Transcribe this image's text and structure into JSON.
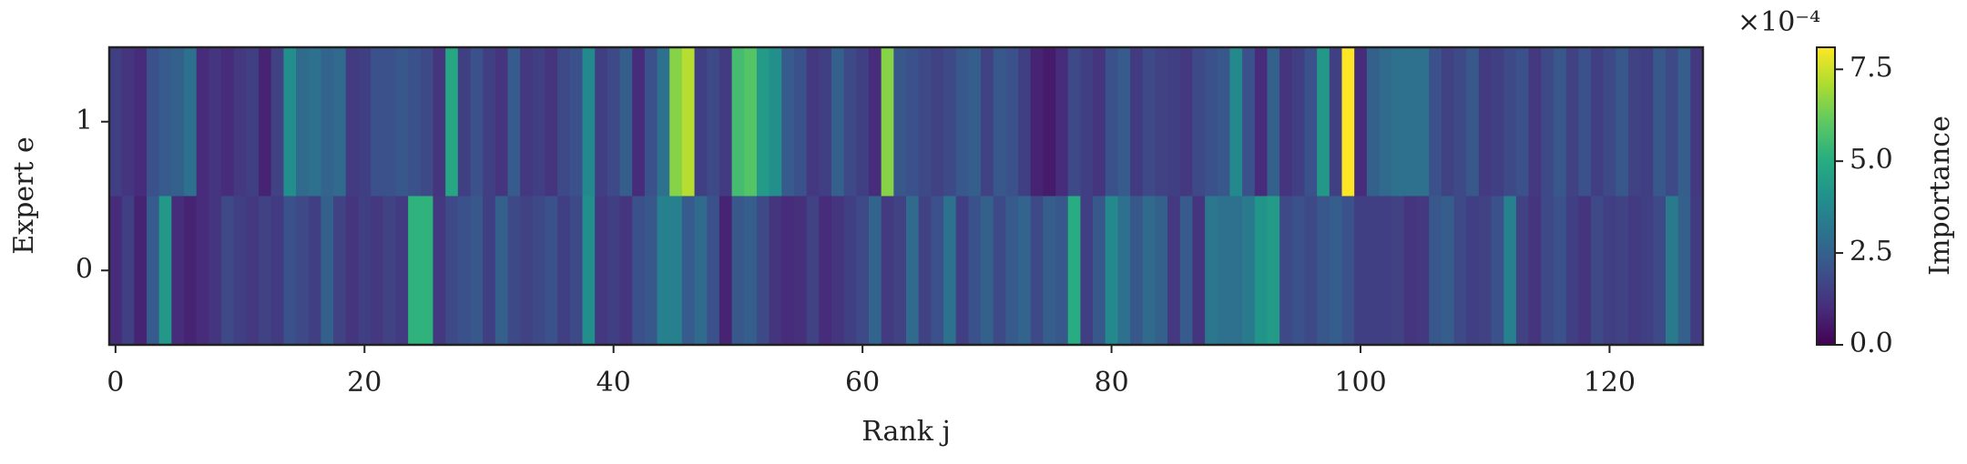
{
  "chart_data": {
    "type": "heatmap",
    "xlabel": "Rank j",
    "ylabel": "Expert e",
    "colorbar_label": "Importance",
    "colorbar_offset": "×10⁻⁴",
    "colormap": "viridis",
    "xlim": [
      -0.5,
      127.5
    ],
    "xticks": [
      0,
      20,
      40,
      60,
      80,
      100,
      120
    ],
    "ylim": [
      -0.5,
      1.5
    ],
    "yticks": [
      0,
      1
    ],
    "clim": [
      0,
      8.1
    ],
    "cticks": [
      {
        "value": 0,
        "label": "0.0"
      },
      2.5,
      {
        "value": 5,
        "label": "5.0"
      },
      7.5
    ],
    "values": [
      [
        1.0,
        1.5,
        0.8,
        2.3,
        4.3,
        1.0,
        0.8,
        1.0,
        1.2,
        1.8,
        1.5,
        1.3,
        1.6,
        1.4,
        2.0,
        1.8,
        1.5,
        2.5,
        1.6,
        1.2,
        1.5,
        1.3,
        1.6,
        1.4,
        5.2,
        5.2,
        1.3,
        1.8,
        2.0,
        2.2,
        1.5,
        2.5,
        1.8,
        1.6,
        1.8,
        2.0,
        1.5,
        1.8,
        4.0,
        1.3,
        1.5,
        1.2,
        2.0,
        2.2,
        3.5,
        3.5,
        2.3,
        2.8,
        2.0,
        0.8,
        2.2,
        2.4,
        1.8,
        1.2,
        1.0,
        1.1,
        1.6,
        1.0,
        1.2,
        1.5,
        1.8,
        2.6,
        1.4,
        1.6,
        2.8,
        1.6,
        2.0,
        3.0,
        1.5,
        2.0,
        2.5,
        1.8,
        2.3,
        2.6,
        1.8,
        2.4,
        2.2,
        5.0,
        1.5,
        2.2,
        3.8,
        3.0,
        2.2,
        2.8,
        2.5,
        1.3,
        2.3,
        1.2,
        3.2,
        3.0,
        3.0,
        3.3,
        4.2,
        4.4,
        1.8,
        2.0,
        1.8,
        2.2,
        2.4,
        2.0,
        1.5,
        1.5,
        1.5,
        1.6,
        1.2,
        1.3,
        2.2,
        2.4,
        1.8,
        1.5,
        1.6,
        2.0,
        3.5,
        1.6,
        1.2,
        1.8,
        2.0,
        1.5,
        1.2,
        1.8,
        1.5,
        1.6,
        1.4,
        1.5,
        1.8,
        3.3,
        2.5,
        1.4
      ],
      [
        1.5,
        1.2,
        1.0,
        2.0,
        2.3,
        2.5,
        3.0,
        1.0,
        1.2,
        1.0,
        1.3,
        1.5,
        0.8,
        1.6,
        4.0,
        2.8,
        3.0,
        2.6,
        2.8,
        1.4,
        1.5,
        2.0,
        2.0,
        2.2,
        2.0,
        1.8,
        1.2,
        4.8,
        1.5,
        2.0,
        1.5,
        1.2,
        2.3,
        1.3,
        1.5,
        1.2,
        1.8,
        2.0,
        3.8,
        1.5,
        1.8,
        2.4,
        1.0,
        2.0,
        3.0,
        6.6,
        7.2,
        1.5,
        1.8,
        1.4,
        5.6,
        5.9,
        4.4,
        4.0,
        2.3,
        2.0,
        1.3,
        1.5,
        2.5,
        1.8,
        1.5,
        1.0,
        6.6,
        2.2,
        2.0,
        1.8,
        1.6,
        1.8,
        2.2,
        2.4,
        1.6,
        2.2,
        2.0,
        1.5,
        0.8,
        0.6,
        1.0,
        1.8,
        1.5,
        1.2,
        2.0,
        2.3,
        1.4,
        1.8,
        1.6,
        1.5,
        1.3,
        1.8,
        2.0,
        2.2,
        3.8,
        2.0,
        1.0,
        2.5,
        1.2,
        1.5,
        2.0,
        4.3,
        1.5,
        8.1,
        1.0,
        2.5,
        2.8,
        3.0,
        3.0,
        3.0,
        2.0,
        1.6,
        1.8,
        2.2,
        1.4,
        1.5,
        1.8,
        2.0,
        1.3,
        1.8,
        2.2,
        1.6,
        2.0,
        1.5,
        1.8,
        2.2,
        1.6,
        1.5,
        2.2,
        1.8,
        2.4,
        1.3
      ]
    ]
  }
}
